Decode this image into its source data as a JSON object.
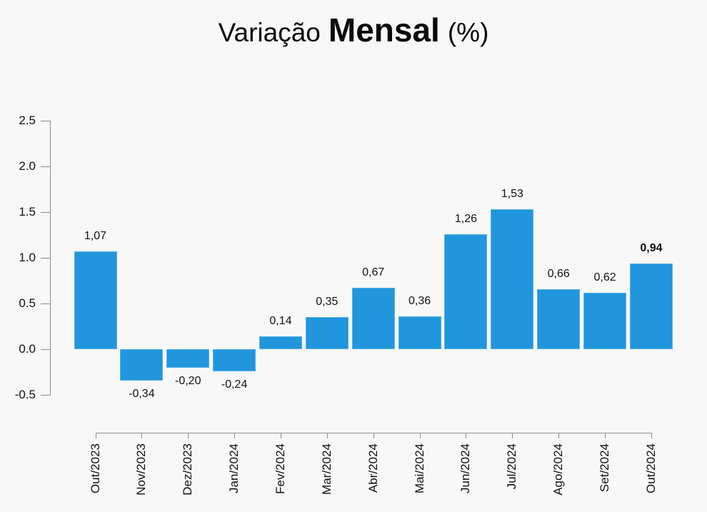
{
  "page": {
    "background": "#f8f8f8"
  },
  "chart_data": {
    "type": "bar",
    "title": "Variação Mensal (%)",
    "title_parts": {
      "prefix": "Variação",
      "bold": "Mensal",
      "suffix": "(%)"
    },
    "categories": [
      "Out/2023",
      "Nov/2023",
      "Dez/2023",
      "Jan/2024",
      "Fev/2024",
      "Mar/2024",
      "Abr/2024",
      "Mai/2024",
      "Jun/2024",
      "Jul/2024",
      "Ago/2024",
      "Set/2024",
      "Out/2024"
    ],
    "values": [
      1.07,
      -0.34,
      -0.2,
      -0.24,
      0.14,
      0.35,
      0.67,
      0.36,
      1.26,
      1.53,
      0.66,
      0.62,
      0.94
    ],
    "value_labels": [
      "1,07",
      "-0,34",
      "-0,20",
      "-0,24",
      "0,14",
      "0,35",
      "0,67",
      "0,36",
      "1,26",
      "1,53",
      "0,66",
      "0,62",
      "0,94"
    ],
    "bold_value_indices": [
      12
    ],
    "y_tick_labels": [
      "2.5",
      "2.0",
      "1.5",
      "1.0",
      "0.5",
      "0.0",
      "-0.5"
    ],
    "y_tick_values": [
      2.5,
      2.0,
      1.5,
      1.0,
      0.5,
      0.0,
      -0.5
    ],
    "ylim": [
      -0.5,
      2.5
    ],
    "xlabel": "",
    "ylabel": "",
    "grid": "off",
    "legend": "none",
    "bar_color": "#2196dc",
    "axis_color": "#8c8c8c",
    "text_color": "#111111"
  }
}
